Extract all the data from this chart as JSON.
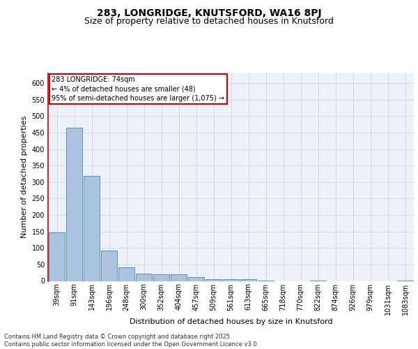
{
  "title1": "283, LONGRIDGE, KNUTSFORD, WA16 8PJ",
  "title2": "Size of property relative to detached houses in Knutsford",
  "xlabel": "Distribution of detached houses by size in Knutsford",
  "ylabel": "Number of detached properties",
  "categories": [
    "39sqm",
    "91sqm",
    "143sqm",
    "196sqm",
    "248sqm",
    "300sqm",
    "352sqm",
    "404sqm",
    "457sqm",
    "509sqm",
    "561sqm",
    "613sqm",
    "665sqm",
    "718sqm",
    "770sqm",
    "822sqm",
    "874sqm",
    "926sqm",
    "979sqm",
    "1031sqm",
    "1083sqm"
  ],
  "values": [
    148,
    465,
    318,
    92,
    42,
    22,
    20,
    20,
    11,
    5,
    5,
    5,
    2,
    0,
    0,
    2,
    0,
    0,
    0,
    0,
    2
  ],
  "bar_color": "#aac4e0",
  "bar_edge_color": "#5a8fbf",
  "annotation_text": "283 LONGRIDGE: 74sqm\n← 4% of detached houses are smaller (48)\n95% of semi-detached houses are larger (1,075) →",
  "annotation_box_color": "#ffffff",
  "annotation_box_edge": "#cc0000",
  "red_line_color": "#cc0000",
  "footer_text": "Contains HM Land Registry data © Crown copyright and database right 2025.\nContains public sector information licensed under the Open Government Licence v3.0.",
  "ylim": [
    0,
    630
  ],
  "yticks": [
    0,
    50,
    100,
    150,
    200,
    250,
    300,
    350,
    400,
    450,
    500,
    550,
    600
  ],
  "grid_color": "#ced8ea",
  "bg_color": "#edf1f8",
  "title_fontsize": 10,
  "subtitle_fontsize": 9,
  "axis_label_fontsize": 8,
  "tick_fontsize": 7,
  "footer_fontsize": 6
}
